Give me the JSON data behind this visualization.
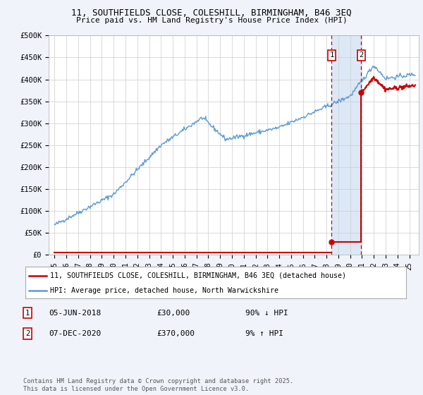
{
  "title_line1": "11, SOUTHFIELDS CLOSE, COLESHILL, BIRMINGHAM, B46 3EQ",
  "title_line2": "Price paid vs. HM Land Registry's House Price Index (HPI)",
  "ylim": [
    0,
    500000
  ],
  "yticks": [
    0,
    50000,
    100000,
    150000,
    200000,
    250000,
    300000,
    350000,
    400000,
    450000,
    500000
  ],
  "ytick_labels": [
    "£0",
    "£50K",
    "£100K",
    "£150K",
    "£200K",
    "£250K",
    "£300K",
    "£350K",
    "£400K",
    "£450K",
    "£500K"
  ],
  "xlim_start": 1994.5,
  "xlim_end": 2025.8,
  "hpi_color": "#5b9bd5",
  "price_color": "#cc0000",
  "t1": 2018.43,
  "t2": 2020.93,
  "transaction1_price": 30000,
  "transaction2_price": 370000,
  "legend_line1": "11, SOUTHFIELDS CLOSE, COLESHILL, BIRMINGHAM, B46 3EQ (detached house)",
  "legend_line2": "HPI: Average price, detached house, North Warwickshire",
  "annotation1_label": "05-JUN-2018",
  "annotation1_price": "£30,000",
  "annotation1_hpi": "90% ↓ HPI",
  "annotation2_label": "07-DEC-2020",
  "annotation2_price": "£370,000",
  "annotation2_hpi": "9% ↑ HPI",
  "footer": "Contains HM Land Registry data © Crown copyright and database right 2025.\nThis data is licensed under the Open Government Licence v3.0.",
  "bg_color": "#f0f4fa",
  "plot_bg": "#ffffff",
  "shade_color": "#dce8f5",
  "grid_color": "#cccccc"
}
